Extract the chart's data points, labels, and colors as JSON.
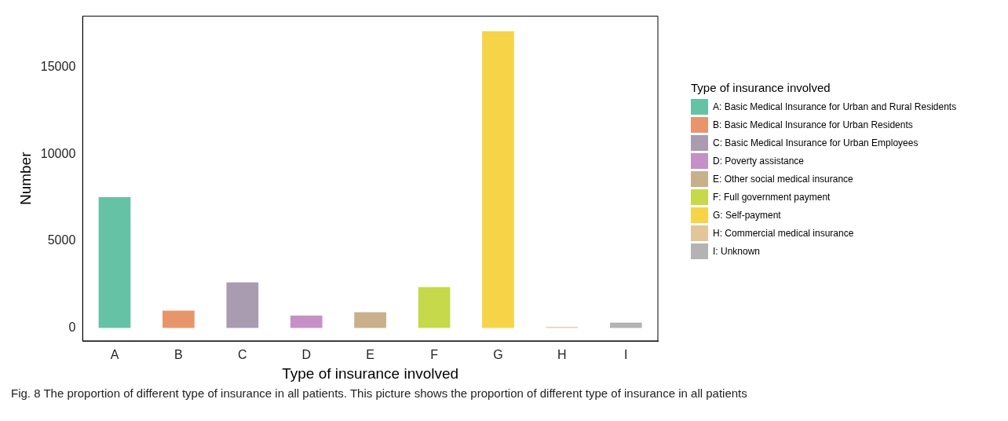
{
  "chart_data": {
    "type": "bar",
    "xlabel": "Type of insurance involved",
    "ylabel": "Number",
    "legend_title": "Type of insurance involved",
    "categories": [
      "A",
      "B",
      "C",
      "D",
      "E",
      "F",
      "G",
      "H",
      "I"
    ],
    "series": [
      {
        "name": "A: Basic Medical Insurance for Urban and Rural Residents",
        "color": "#66c2a5",
        "values": [
          7530,
          null,
          null,
          null,
          null,
          null,
          null,
          null,
          null
        ]
      },
      {
        "name": "B: Basic Medical Insurance for Urban Residents",
        "color": "#e8956b",
        "values": [
          null,
          990,
          null,
          null,
          null,
          null,
          null,
          null,
          null
        ]
      },
      {
        "name": "C: Basic Medical Insurance for Urban Employees",
        "color": "#a99bb0",
        "values": [
          null,
          null,
          2620,
          null,
          null,
          null,
          null,
          null,
          null
        ]
      },
      {
        "name": "D: Poverty assistance",
        "color": "#c490c6",
        "values": [
          null,
          null,
          null,
          710,
          null,
          null,
          null,
          null,
          null
        ]
      },
      {
        "name": "E: Other social medical insurance",
        "color": "#c8b08a",
        "values": [
          null,
          null,
          null,
          null,
          900,
          null,
          null,
          null,
          null
        ]
      },
      {
        "name": "F: Full government payment",
        "color": "#c6d94a",
        "values": [
          null,
          null,
          null,
          null,
          null,
          2350,
          null,
          null,
          null
        ]
      },
      {
        "name": "G: Self-payment",
        "color": "#f7d348",
        "values": [
          null,
          null,
          null,
          null,
          null,
          null,
          17080,
          null,
          null
        ]
      },
      {
        "name": "H: Commercial medical insurance",
        "color": "#e2c598",
        "values": [
          null,
          null,
          null,
          null,
          null,
          null,
          null,
          50,
          null
        ]
      },
      {
        "name": "I: Unknown",
        "color": "#b3b3b3",
        "values": [
          null,
          null,
          null,
          null,
          null,
          null,
          null,
          null,
          300
        ]
      }
    ],
    "ylim": [
      -750,
      17950
    ],
    "yticks": [
      0,
      5000,
      10000,
      15000
    ],
    "grid": false,
    "legend": "right",
    "annotations": [
      "Fig. 8  The proportion of different type of insurance in all patients. This picture shows the proportion of different type of insurance in all patients"
    ]
  }
}
